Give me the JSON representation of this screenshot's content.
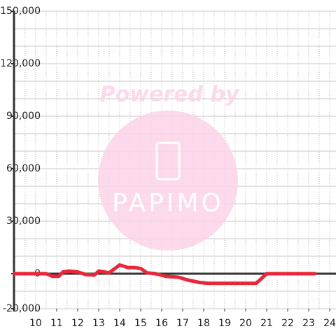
{
  "chart_data": {
    "type": "line",
    "watermark": {
      "top": "Powered by",
      "brand": "PAPIMO"
    },
    "x": [
      9,
      10.5,
      10.8,
      11.1,
      11.3,
      11.6,
      12,
      12.4,
      12.8,
      13,
      13.5,
      14,
      14.4,
      14.7,
      15,
      15.3,
      15.7,
      16.2,
      16.8,
      17.2,
      17.8,
      18.2,
      19,
      20,
      20.5,
      21,
      21.5,
      22,
      23.3
    ],
    "series": [
      {
        "color": "#e8273a",
        "values": [
          0,
          0,
          -1500,
          -1500,
          1000,
          1500,
          1000,
          -500,
          -800,
          1500,
          500,
          5000,
          3500,
          3500,
          3000,
          500,
          0,
          -1500,
          -2000,
          -3500,
          -5000,
          -5500,
          -5500,
          -5500,
          -5500,
          0,
          0,
          0,
          0
        ]
      }
    ],
    "xlim": [
      8.97,
      24.3
    ],
    "xticks": [
      10,
      11,
      12,
      13,
      14,
      15,
      16,
      17,
      18,
      19,
      20,
      21,
      22,
      23,
      24
    ],
    "ylim": [
      -20000,
      150000
    ],
    "yticks": [
      {
        "value": -20000,
        "label": "-20,000"
      },
      0,
      {
        "value": 30000,
        "label": "30,000"
      },
      {
        "value": 60000,
        "label": "60,000"
      },
      {
        "value": 90000,
        "label": "90,000"
      },
      {
        "value": 120000,
        "label": "120,000"
      },
      {
        "value": 150000,
        "label": "150,000"
      }
    ],
    "y_minor_step": 10000,
    "x_minor_step": 0.5,
    "grid": true
  }
}
